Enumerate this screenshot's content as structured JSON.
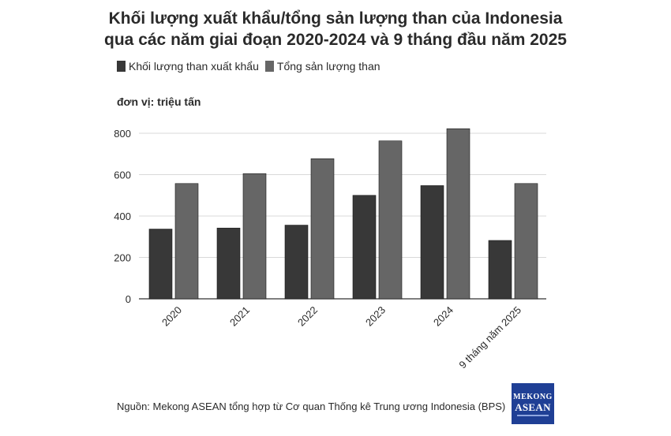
{
  "header": {
    "title_line1": "Khối lượng xuất khẩu/tổng sản lượng than của Indonesia",
    "title_line2": "qua các năm giai đoạn 2020-2024 và 9 tháng đầu năm 2025"
  },
  "legend": {
    "items": [
      {
        "label": "Khối lượng than xuất khẩu",
        "color": "#383838"
      },
      {
        "label": "Tổng sản lượng than",
        "color": "#666666"
      }
    ]
  },
  "unit_label": "đơn vị: triệu tấn",
  "source": "Nguồn: Mekong ASEAN tổng hợp từ Cơ quan Thống kê Trung ương Indonesia (BPS)",
  "logo": {
    "line1": "MEKONG",
    "line2": "ASEAN"
  },
  "chart_data": {
    "type": "bar",
    "categories": [
      "2020",
      "2021",
      "2022",
      "2023",
      "2024",
      "9 tháng năm 2025"
    ],
    "series": [
      {
        "name": "Khối lượng than xuất khẩu",
        "values": [
          337,
          342,
          356,
          500,
          547,
          282
        ],
        "color": "#383838"
      },
      {
        "name": "Tổng sản lượng than",
        "values": [
          557,
          605,
          677,
          763,
          822,
          557
        ],
        "color": "#666666"
      }
    ],
    "ylim": [
      0,
      880
    ],
    "yticks": [
      0,
      200,
      400,
      600,
      800
    ],
    "grid": true,
    "legend_position": "top-left"
  }
}
